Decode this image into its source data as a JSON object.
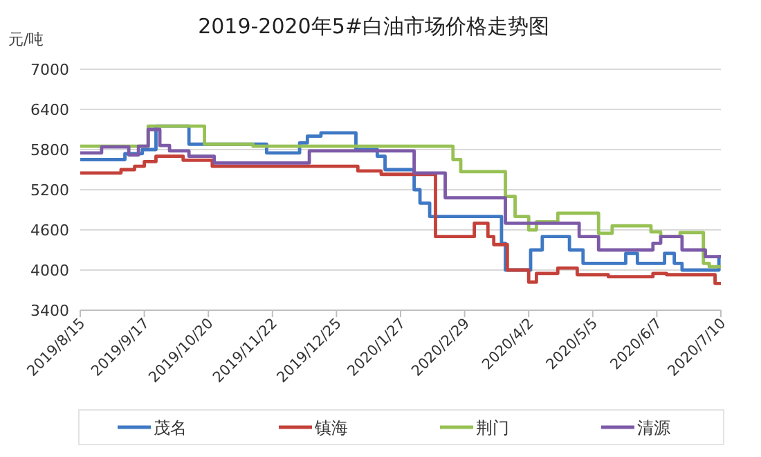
{
  "chart_data": {
    "type": "step",
    "title": "2019-2020年5#白油市场价格走势图",
    "ylabel": "元/吨",
    "xlim": [
      "2019-08-15",
      "2020-07-10"
    ],
    "ylim": [
      3400,
      7000
    ],
    "xticks": [
      {
        "value": "2019-08-15",
        "label": "2019/8/15"
      },
      {
        "value": "2019-09-17",
        "label": "2019/9/17"
      },
      {
        "value": "2019-10-20",
        "label": "2019/10/20"
      },
      {
        "value": "2019-11-22",
        "label": "2019/11/22"
      },
      {
        "value": "2019-12-25",
        "label": "2019/12/25"
      },
      {
        "value": "2020-01-27",
        "label": "2020/1/27"
      },
      {
        "value": "2020-02-29",
        "label": "2020/2/29"
      },
      {
        "value": "2020-04-02",
        "label": "2020/4/2"
      },
      {
        "value": "2020-05-05",
        "label": "2020/5/5"
      },
      {
        "value": "2020-06-07",
        "label": "2020/6/7"
      },
      {
        "value": "2020-07-10",
        "label": "2020/7/10"
      }
    ],
    "yticks": [
      3400,
      4000,
      4600,
      5200,
      5800,
      6400,
      7000
    ],
    "grid": "y",
    "legend": "bottom",
    "marker": "none",
    "line_style": "solid",
    "series": [
      {
        "name": "茂名",
        "color": "#3f78c4",
        "x": [
          "2019-08-15",
          "2019-09-07",
          "2019-09-16",
          "2019-09-23",
          "2019-10-10",
          "2019-11-19",
          "2019-12-06",
          "2019-12-10",
          "2019-12-17",
          "2020-01-04",
          "2020-01-15",
          "2020-01-19",
          "2020-02-03",
          "2020-02-06",
          "2020-02-11",
          "2020-03-19",
          "2020-03-21",
          "2020-04-03",
          "2020-04-09",
          "2020-04-23",
          "2020-04-30",
          "2020-05-22",
          "2020-05-28",
          "2020-06-11",
          "2020-06-16",
          "2020-06-20",
          "2020-07-09",
          "2020-07-10"
        ],
        "values": [
          5650,
          5740,
          5800,
          6150,
          5880,
          5750,
          5900,
          6000,
          6050,
          5800,
          5700,
          5500,
          5200,
          5000,
          4800,
          4400,
          4000,
          4300,
          4500,
          4300,
          4100,
          4250,
          4100,
          4250,
          4100,
          4000,
          4200,
          4200
        ]
      },
      {
        "name": "镇海",
        "color": "#c4413a",
        "x": [
          "2019-08-15",
          "2019-09-05",
          "2019-09-12",
          "2019-09-17",
          "2019-09-23",
          "2019-10-07",
          "2019-10-22",
          "2020-01-05",
          "2020-01-17",
          "2020-02-14",
          "2020-03-05",
          "2020-03-12",
          "2020-03-15",
          "2020-03-22",
          "2020-04-02",
          "2020-04-06",
          "2020-04-17",
          "2020-04-27",
          "2020-05-13",
          "2020-06-05",
          "2020-06-12",
          "2020-07-07",
          "2020-07-10"
        ],
        "values": [
          5450,
          5500,
          5550,
          5620,
          5700,
          5640,
          5550,
          5480,
          5430,
          4500,
          4700,
          4500,
          4380,
          4000,
          3820,
          3950,
          4030,
          3930,
          3900,
          3950,
          3930,
          3800,
          3800
        ]
      },
      {
        "name": "荆门",
        "color": "#97c154",
        "x": [
          "2019-08-15",
          "2019-09-19",
          "2019-10-18",
          "2019-11-12",
          "2020-02-23",
          "2020-02-27",
          "2020-03-21",
          "2020-03-26",
          "2020-04-02",
          "2020-04-06",
          "2020-04-17",
          "2020-05-08",
          "2020-05-15",
          "2020-06-04",
          "2020-06-09",
          "2020-06-19",
          "2020-07-01",
          "2020-07-04",
          "2020-07-10"
        ],
        "values": [
          5850,
          6150,
          5880,
          5850,
          5650,
          5470,
          5100,
          4800,
          4600,
          4720,
          4850,
          4550,
          4660,
          4570,
          4500,
          4560,
          4100,
          4050,
          4050
        ]
      },
      {
        "name": "清源",
        "color": "#7d5aa8",
        "x": [
          "2019-08-15",
          "2019-08-26",
          "2019-09-09",
          "2019-09-14",
          "2019-09-19",
          "2019-09-25",
          "2019-09-30",
          "2019-10-10",
          "2019-10-23",
          "2019-12-11",
          "2020-02-03",
          "2020-02-19",
          "2020-03-21",
          "2020-04-28",
          "2020-05-08",
          "2020-06-05",
          "2020-06-09",
          "2020-06-20",
          "2020-07-02",
          "2020-07-10"
        ],
        "values": [
          5750,
          5840,
          5720,
          5850,
          6100,
          5860,
          5780,
          5700,
          5600,
          5780,
          5450,
          5080,
          4700,
          4500,
          4300,
          4400,
          4500,
          4300,
          4200,
          4200
        ]
      }
    ]
  }
}
